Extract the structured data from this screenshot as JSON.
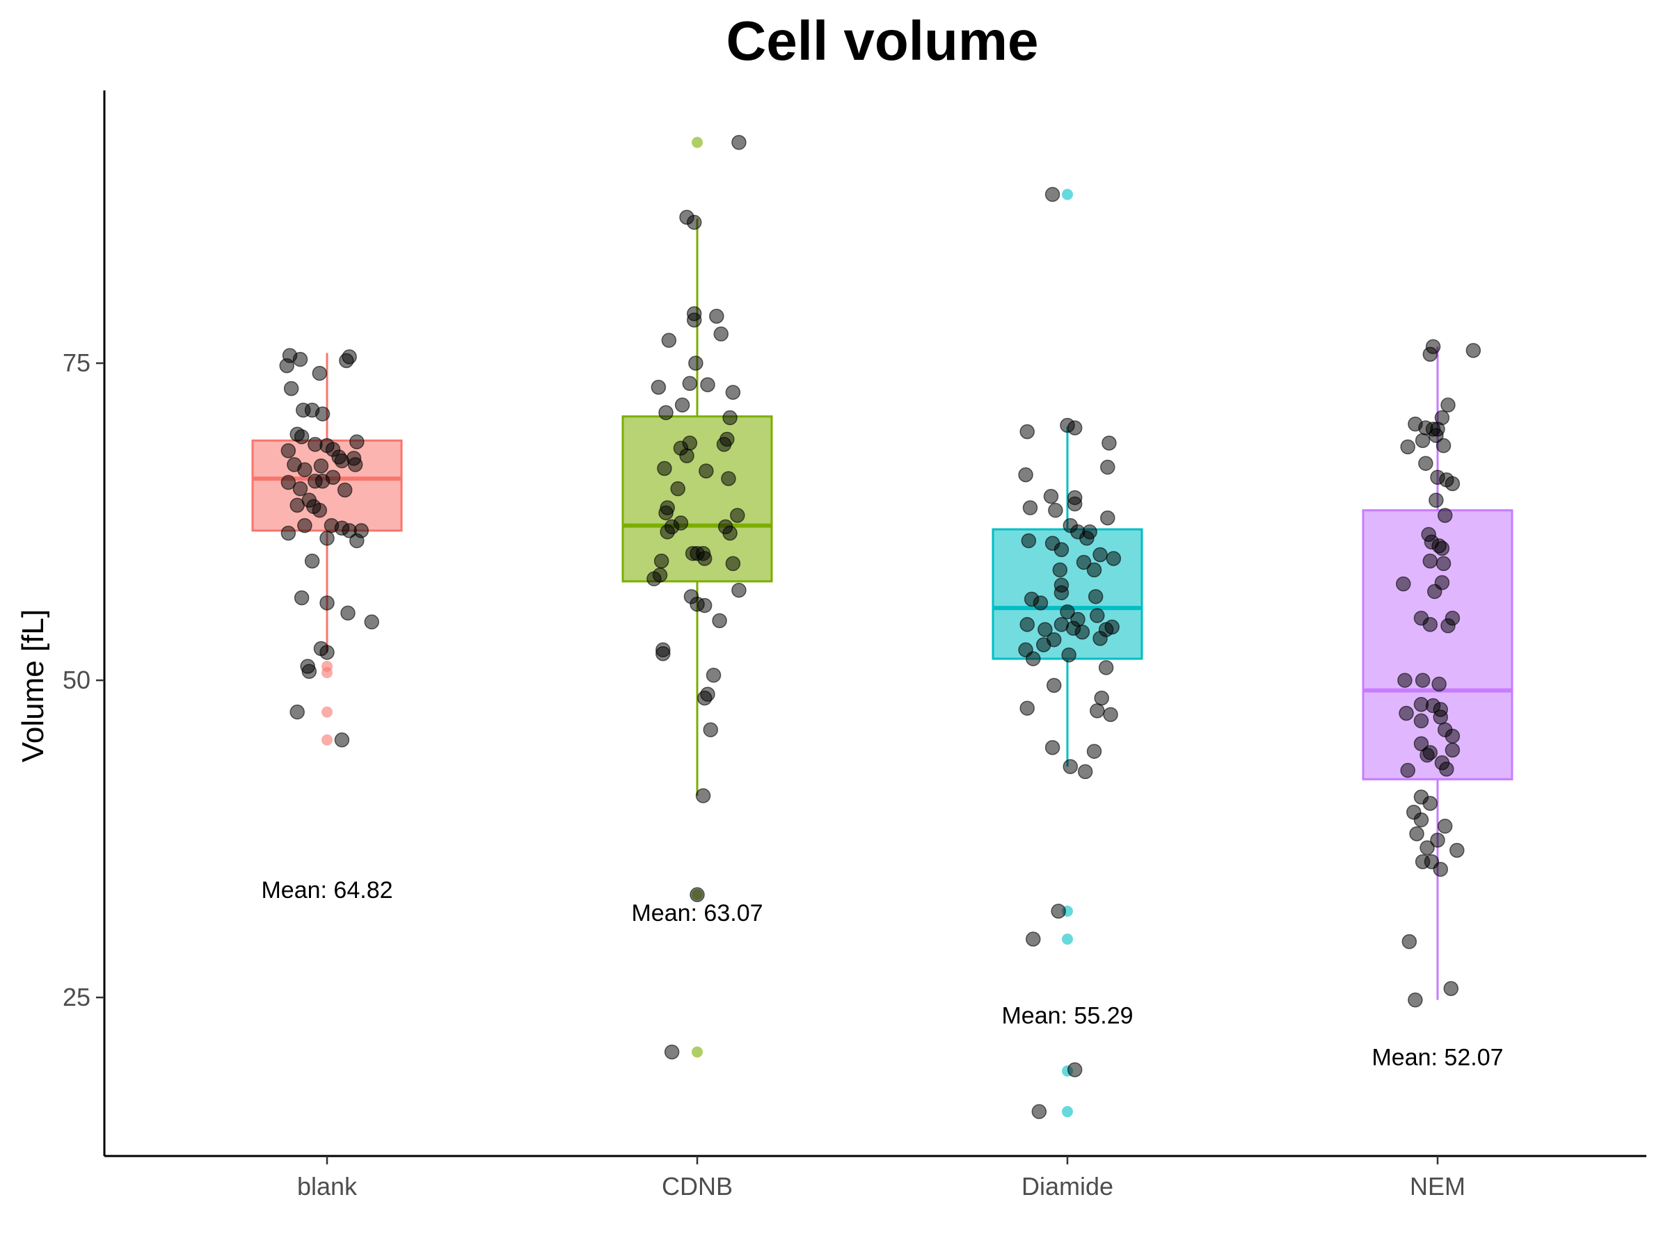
{
  "chart_data": {
    "type": "boxplot",
    "title": "Cell volume",
    "xlabel": "",
    "ylabel": "Volume [fL]",
    "ylim": [
      12.5,
      96.5
    ],
    "yticks": [
      25,
      50,
      75
    ],
    "grid": false,
    "legend": "none",
    "mean_prefix": "Mean: ",
    "categories": [
      "blank",
      "CDNB",
      "Diamide",
      "NEM"
    ],
    "groups": [
      {
        "name": "blank",
        "color": "#F8766D",
        "mean_label": "64.82",
        "mean_label_y": 33.5,
        "box": {
          "whisker_low": 52.2,
          "q1": 61.8,
          "median": 65.9,
          "q3": 68.9,
          "whisker_high": 75.8
        },
        "outliers": [
          51.1,
          50.6,
          47.5,
          45.3
        ],
        "points": [
          [
            -0.25,
            75.6
          ],
          [
            -0.18,
            75.3
          ],
          [
            -0.27,
            74.8
          ],
          [
            -0.05,
            74.2
          ],
          [
            0.15,
            75.5
          ],
          [
            0.13,
            75.2
          ],
          [
            -0.24,
            73.0
          ],
          [
            -0.16,
            71.3
          ],
          [
            -0.1,
            71.3
          ],
          [
            -0.03,
            71.0
          ],
          [
            -0.2,
            69.4
          ],
          [
            -0.17,
            69.2
          ],
          [
            -0.26,
            68.1
          ],
          [
            -0.08,
            68.6
          ],
          [
            0.0,
            68.5
          ],
          [
            0.04,
            68.2
          ],
          [
            0.08,
            67.6
          ],
          [
            0.2,
            68.8
          ],
          [
            0.18,
            67.5
          ],
          [
            -0.22,
            67.0
          ],
          [
            -0.15,
            66.6
          ],
          [
            -0.04,
            66.9
          ],
          [
            0.1,
            67.3
          ],
          [
            0.19,
            67.0
          ],
          [
            -0.26,
            65.6
          ],
          [
            -0.18,
            65.1
          ],
          [
            -0.08,
            65.7
          ],
          [
            -0.03,
            65.7
          ],
          [
            0.04,
            66.0
          ],
          [
            0.12,
            65.0
          ],
          [
            -0.2,
            63.8
          ],
          [
            -0.12,
            64.2
          ],
          [
            -0.09,
            63.7
          ],
          [
            -0.05,
            63.4
          ],
          [
            0.03,
            62.2
          ],
          [
            0.1,
            62.0
          ],
          [
            -0.15,
            62.2
          ],
          [
            -0.26,
            61.6
          ],
          [
            0.15,
            61.8
          ],
          [
            0.23,
            61.8
          ],
          [
            0.0,
            61.2
          ],
          [
            0.2,
            61.0
          ],
          [
            -0.1,
            59.4
          ],
          [
            -0.17,
            56.5
          ],
          [
            0.0,
            56.1
          ],
          [
            0.14,
            55.3
          ],
          [
            0.3,
            54.6
          ],
          [
            -0.04,
            52.5
          ],
          [
            0.0,
            52.2
          ],
          [
            -0.13,
            51.1
          ],
          [
            -0.12,
            50.7
          ],
          [
            -0.2,
            47.5
          ],
          [
            0.1,
            45.3
          ]
        ]
      },
      {
        "name": "CDNB",
        "color": "#7CAE00",
        "mean_label": "63.07",
        "mean_label_y": 31.7,
        "box": {
          "whisker_low": 40.9,
          "q1": 57.8,
          "median": 62.2,
          "q3": 70.8,
          "whisker_high": 86.4
        },
        "outliers": [
          92.4,
          33.1,
          20.7
        ],
        "points": [
          [
            0.28,
            92.4
          ],
          [
            -0.07,
            86.5
          ],
          [
            -0.02,
            86.1
          ],
          [
            -0.02,
            78.9
          ],
          [
            0.13,
            78.7
          ],
          [
            -0.02,
            78.4
          ],
          [
            0.16,
            77.3
          ],
          [
            -0.19,
            76.8
          ],
          [
            -0.01,
            75.0
          ],
          [
            -0.26,
            73.1
          ],
          [
            -0.05,
            73.4
          ],
          [
            0.07,
            73.3
          ],
          [
            0.24,
            72.7
          ],
          [
            -0.1,
            71.7
          ],
          [
            -0.21,
            71.1
          ],
          [
            0.22,
            70.7
          ],
          [
            0.2,
            69.0
          ],
          [
            -0.05,
            68.7
          ],
          [
            0.18,
            68.6
          ],
          [
            -0.11,
            68.3
          ],
          [
            -0.07,
            67.7
          ],
          [
            -0.22,
            66.7
          ],
          [
            0.06,
            66.5
          ],
          [
            0.21,
            65.9
          ],
          [
            -0.13,
            65.1
          ],
          [
            -0.2,
            63.6
          ],
          [
            -0.21,
            63.2
          ],
          [
            0.27,
            63.0
          ],
          [
            -0.11,
            62.4
          ],
          [
            -0.17,
            62.1
          ],
          [
            0.19,
            62.1
          ],
          [
            0.22,
            61.6
          ],
          [
            -0.2,
            61.7
          ],
          [
            -0.03,
            60.0
          ],
          [
            0.0,
            60.0
          ],
          [
            0.04,
            60.0
          ],
          [
            0.05,
            59.6
          ],
          [
            -0.24,
            59.4
          ],
          [
            0.24,
            59.2
          ],
          [
            -0.25,
            58.3
          ],
          [
            -0.29,
            58.0
          ],
          [
            0.28,
            57.1
          ],
          [
            -0.04,
            56.6
          ],
          [
            0.0,
            56.0
          ],
          [
            0.05,
            55.9
          ],
          [
            0.15,
            54.7
          ],
          [
            -0.23,
            52.4
          ],
          [
            -0.23,
            52.1
          ],
          [
            0.11,
            50.4
          ],
          [
            0.07,
            48.9
          ],
          [
            0.05,
            48.6
          ],
          [
            0.09,
            46.1
          ],
          [
            0.04,
            40.9
          ],
          [
            0.0,
            33.1
          ],
          [
            -0.17,
            20.7
          ]
        ]
      },
      {
        "name": "Diamide",
        "color": "#00BFC4",
        "mean_label": "55.29",
        "mean_label_y": 23.6,
        "box": {
          "whisker_low": 43.2,
          "q1": 51.7,
          "median": 55.7,
          "q3": 61.9,
          "whisker_high": 70.0
        },
        "outliers": [
          88.3,
          31.8,
          29.6,
          19.2,
          16.0
        ],
        "points": [
          [
            -0.1,
            88.3
          ],
          [
            0.0,
            70.1
          ],
          [
            0.05,
            69.9
          ],
          [
            -0.27,
            69.6
          ],
          [
            0.28,
            68.7
          ],
          [
            0.27,
            66.8
          ],
          [
            -0.28,
            66.2
          ],
          [
            -0.11,
            64.5
          ],
          [
            0.05,
            64.4
          ],
          [
            0.05,
            63.9
          ],
          [
            -0.25,
            63.6
          ],
          [
            -0.08,
            63.4
          ],
          [
            0.27,
            62.8
          ],
          [
            0.02,
            62.2
          ],
          [
            0.07,
            61.7
          ],
          [
            0.15,
            61.7
          ],
          [
            -0.26,
            61.0
          ],
          [
            -0.1,
            60.8
          ],
          [
            0.13,
            61.2
          ],
          [
            -0.04,
            60.3
          ],
          [
            0.22,
            59.9
          ],
          [
            0.31,
            59.6
          ],
          [
            0.11,
            59.3
          ],
          [
            -0.05,
            58.7
          ],
          [
            0.18,
            58.7
          ],
          [
            -0.04,
            57.5
          ],
          [
            -0.04,
            56.9
          ],
          [
            0.19,
            56.6
          ],
          [
            -0.24,
            56.4
          ],
          [
            -0.18,
            56.1
          ],
          [
            0.0,
            55.4
          ],
          [
            0.2,
            55.1
          ],
          [
            0.07,
            54.8
          ],
          [
            -0.04,
            54.4
          ],
          [
            0.04,
            54.1
          ],
          [
            0.3,
            54.2
          ],
          [
            -0.27,
            54.4
          ],
          [
            -0.15,
            54.0
          ],
          [
            0.26,
            54.0
          ],
          [
            0.1,
            53.8
          ],
          [
            -0.09,
            53.2
          ],
          [
            0.22,
            53.3
          ],
          [
            -0.16,
            52.8
          ],
          [
            -0.28,
            52.4
          ],
          [
            0.01,
            52.0
          ],
          [
            -0.23,
            51.7
          ],
          [
            0.26,
            51.0
          ],
          [
            -0.09,
            49.6
          ],
          [
            0.23,
            48.6
          ],
          [
            -0.27,
            47.8
          ],
          [
            0.2,
            47.6
          ],
          [
            0.29,
            47.3
          ],
          [
            -0.1,
            44.7
          ],
          [
            0.18,
            44.4
          ],
          [
            0.02,
            43.2
          ],
          [
            0.12,
            42.8
          ],
          [
            -0.06,
            31.8
          ],
          [
            -0.23,
            29.6
          ],
          [
            0.05,
            19.3
          ],
          [
            -0.19,
            16.0
          ]
        ]
      },
      {
        "name": "NEM",
        "color": "#C77CFF",
        "mean_label": "52.07",
        "mean_label_y": 20.3,
        "box": {
          "whisker_low": 24.8,
          "q1": 42.2,
          "median": 49.2,
          "q3": 63.4,
          "whisker_high": 76.3
        },
        "outliers": [],
        "points": [
          [
            -0.03,
            76.3
          ],
          [
            0.24,
            76.0
          ],
          [
            -0.05,
            75.7
          ],
          [
            0.07,
            71.7
          ],
          [
            0.03,
            70.7
          ],
          [
            -0.15,
            70.2
          ],
          [
            -0.08,
            69.9
          ],
          [
            0.0,
            69.8
          ],
          [
            -0.03,
            69.8
          ],
          [
            -0.01,
            69.3
          ],
          [
            -0.1,
            68.9
          ],
          [
            0.04,
            68.5
          ],
          [
            -0.2,
            68.4
          ],
          [
            -0.08,
            67.1
          ],
          [
            0.0,
            66.0
          ],
          [
            0.06,
            65.8
          ],
          [
            0.1,
            65.5
          ],
          [
            -0.01,
            64.2
          ],
          [
            0.05,
            63.0
          ],
          [
            -0.06,
            61.5
          ],
          [
            -0.04,
            60.9
          ],
          [
            0.01,
            60.6
          ],
          [
            0.03,
            60.4
          ],
          [
            -0.05,
            59.4
          ],
          [
            0.04,
            59.2
          ],
          [
            -0.23,
            57.6
          ],
          [
            0.03,
            57.7
          ],
          [
            -0.02,
            57.0
          ],
          [
            0.1,
            54.9
          ],
          [
            -0.11,
            54.9
          ],
          [
            -0.05,
            54.4
          ],
          [
            0.07,
            54.3
          ],
          [
            -0.22,
            50.0
          ],
          [
            -0.1,
            50.0
          ],
          [
            0.01,
            49.7
          ],
          [
            -0.11,
            48.1
          ],
          [
            -0.03,
            48.0
          ],
          [
            0.02,
            47.7
          ],
          [
            -0.21,
            47.4
          ],
          [
            0.02,
            47.1
          ],
          [
            -0.11,
            46.8
          ],
          [
            0.05,
            46.1
          ],
          [
            0.1,
            45.6
          ],
          [
            -0.11,
            45.0
          ],
          [
            0.1,
            44.5
          ],
          [
            -0.05,
            44.3
          ],
          [
            -0.07,
            44.1
          ],
          [
            0.03,
            43.5
          ],
          [
            0.06,
            43.0
          ],
          [
            -0.2,
            42.9
          ],
          [
            -0.11,
            40.8
          ],
          [
            -0.05,
            40.3
          ],
          [
            -0.16,
            39.6
          ],
          [
            -0.11,
            39.0
          ],
          [
            0.05,
            38.5
          ],
          [
            -0.14,
            37.9
          ],
          [
            0.0,
            37.4
          ],
          [
            -0.07,
            36.8
          ],
          [
            0.13,
            36.6
          ],
          [
            -0.1,
            35.7
          ],
          [
            -0.04,
            35.7
          ],
          [
            0.02,
            35.1
          ],
          [
            -0.19,
            29.4
          ],
          [
            -0.15,
            24.8
          ],
          [
            0.09,
            25.7
          ]
        ]
      }
    ]
  }
}
